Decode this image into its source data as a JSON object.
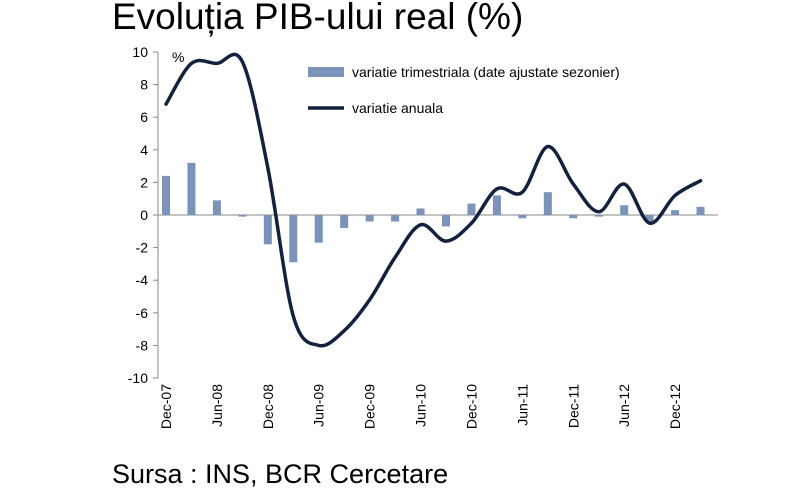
{
  "title": "Evoluția PIB-ului real (%)",
  "source": "Sursa : INS, BCR Cercetare",
  "chart_data": {
    "type": "bar+line",
    "unit_label": "%",
    "ylim": [
      -10,
      10
    ],
    "yticks": [
      10,
      8,
      6,
      4,
      2,
      0,
      -2,
      -4,
      -6,
      -8,
      -10
    ],
    "categories": [
      "Dec-07",
      "Mar-08",
      "Jun-08",
      "Sep-08",
      "Dec-08",
      "Mar-09",
      "Jun-09",
      "Sep-09",
      "Dec-09",
      "Mar-10",
      "Jun-10",
      "Sep-10",
      "Dec-10",
      "Mar-11",
      "Jun-11",
      "Sep-11",
      "Dec-11",
      "Mar-12",
      "Jun-12",
      "Sep-12",
      "Dec-12",
      "Mar-13"
    ],
    "xtick_labels": [
      "Dec-07",
      "Jun-08",
      "Dec-08",
      "Jun-09",
      "Dec-09",
      "Jun-10",
      "Dec-10",
      "Jun-11",
      "Dec-11",
      "Jun-12",
      "Dec-12"
    ],
    "legend_position": "top-right",
    "series": [
      {
        "name": "variatie trimestriala (date ajustate sezonier)",
        "kind": "bar",
        "color": "#7b93b8",
        "values": [
          2.4,
          3.2,
          0.9,
          -0.1,
          -1.8,
          -2.9,
          -1.7,
          -0.8,
          -0.4,
          -0.4,
          0.4,
          -0.7,
          0.7,
          1.2,
          -0.2,
          1.4,
          -0.2,
          -0.1,
          0.6,
          -0.4,
          0.3,
          0.5
        ]
      },
      {
        "name": "variatie anuala",
        "kind": "line",
        "color": "#14213d",
        "values": [
          6.8,
          9.3,
          9.3,
          9.4,
          2.9,
          -6.2,
          -8.0,
          -7.1,
          -5.2,
          -2.6,
          -0.6,
          -1.6,
          -0.5,
          1.6,
          1.4,
          4.2,
          1.9,
          0.2,
          1.9,
          -0.5,
          1.2,
          2.1
        ]
      }
    ]
  }
}
